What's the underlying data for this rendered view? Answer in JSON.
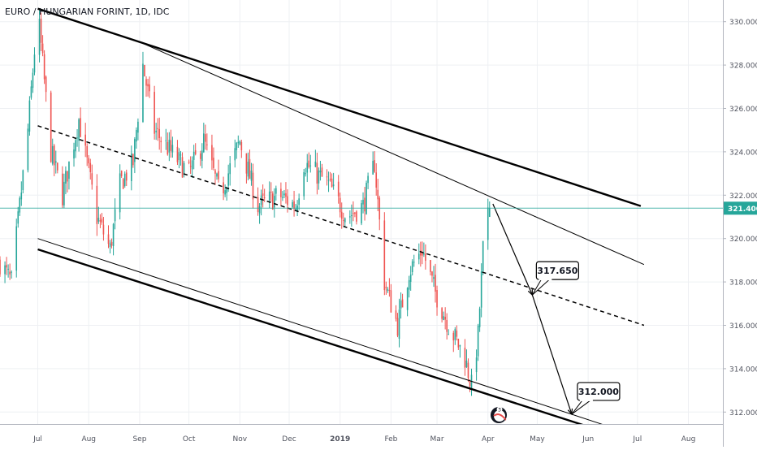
{
  "header": {
    "title": "EURO / HUNGARIAN FORINT, 1D, IDC"
  },
  "colors": {
    "up": "#26a69a",
    "down": "#ef5350",
    "grid": "#eef0f3",
    "axis_text": "#50535e",
    "price_line": "#26a69a",
    "drawing": "#000000",
    "label_bg": "#26a69a"
  },
  "chart_data": {
    "type": "candlestick",
    "title": "EURO / HUNGARIAN FORINT, 1D, IDC",
    "ylim": [
      310.4,
      331.0
    ],
    "y_ticks": [
      "330.000",
      "328.000",
      "326.000",
      "324.000",
      "322.000",
      "320.000",
      "318.000",
      "316.000",
      "314.000",
      "312.000"
    ],
    "x_labels": [
      "Jul",
      "Aug",
      "Sep",
      "Oct",
      "Nov",
      "Dec",
      "2019",
      "Feb",
      "Mar",
      "Apr",
      "May",
      "Jun",
      "Jul",
      "Aug"
    ],
    "x_range": [
      "2018-06-08",
      "2019-08-22"
    ],
    "last_price": "321.400",
    "grid": true,
    "price_keypoints": [
      [
        "2018-06-08",
        318.9
      ],
      [
        "2018-06-15",
        318.0
      ],
      [
        "2018-06-25",
        325.0
      ],
      [
        "2018-07-01",
        330.5
      ],
      [
        "2018-07-09",
        324.0
      ],
      [
        "2018-07-16",
        322.0
      ],
      [
        "2018-07-26",
        325.5
      ],
      [
        "2018-08-06",
        321.0
      ],
      [
        "2018-08-14",
        319.5
      ],
      [
        "2018-08-20",
        322.5
      ],
      [
        "2018-08-28",
        323.5
      ],
      [
        "2018-09-03",
        328.0
      ],
      [
        "2018-09-10",
        325.0
      ],
      [
        "2018-09-20",
        324.0
      ],
      [
        "2018-10-01",
        323.0
      ],
      [
        "2018-10-10",
        324.5
      ],
      [
        "2018-10-20",
        322.0
      ],
      [
        "2018-11-01",
        324.5
      ],
      [
        "2018-11-12",
        321.5
      ],
      [
        "2018-11-25",
        322.0
      ],
      [
        "2018-12-05",
        321.5
      ],
      [
        "2018-12-10",
        323.5
      ],
      [
        "2018-12-25",
        322.5
      ],
      [
        "2019-01-05",
        321.0
      ],
      [
        "2019-01-15",
        321.5
      ],
      [
        "2019-01-22",
        323.5
      ],
      [
        "2019-01-28",
        318.0
      ],
      [
        "2019-02-05",
        316.0
      ],
      [
        "2019-02-12",
        318.5
      ],
      [
        "2019-02-20",
        319.5
      ],
      [
        "2019-02-28",
        317.5
      ],
      [
        "2019-03-08",
        316.0
      ],
      [
        "2019-03-18",
        314.5
      ],
      [
        "2019-03-22",
        313.2
      ],
      [
        "2019-03-26",
        315.5
      ],
      [
        "2019-03-29",
        319.5
      ],
      [
        "2019-04-02",
        321.4
      ]
    ],
    "annotations": {
      "upper_channel": {
        "from": [
          "2018-07-01",
          330.6
        ],
        "to": [
          "2019-07-03",
          321.5
        ]
      },
      "lower_channel": {
        "from": [
          "2018-07-01",
          319.5
        ],
        "to": [
          "2019-07-05",
          310.5
        ]
      },
      "fan_line_upper": {
        "from": [
          "2018-09-03",
          329.0
        ],
        "to": [
          "2019-07-05",
          318.8
        ]
      },
      "fan_line_lower": {
        "from": [
          "2018-07-01",
          320.0
        ],
        "to": [
          "2019-07-05",
          310.8
        ]
      },
      "median_dashed": {
        "from": [
          "2018-07-01",
          325.2
        ],
        "to": [
          "2019-07-05",
          316.0
        ]
      },
      "arrow_1": {
        "from": [
          "2019-04-04",
          321.6
        ],
        "to": [
          "2019-04-28",
          317.4
        ]
      },
      "arrow_2": {
        "from": [
          "2019-04-28",
          317.4
        ],
        "to": [
          "2019-05-22",
          311.9
        ]
      },
      "target_1": "317.650",
      "target_2": "312.000"
    }
  },
  "watermark_icon": "tradingview-logo-icon"
}
